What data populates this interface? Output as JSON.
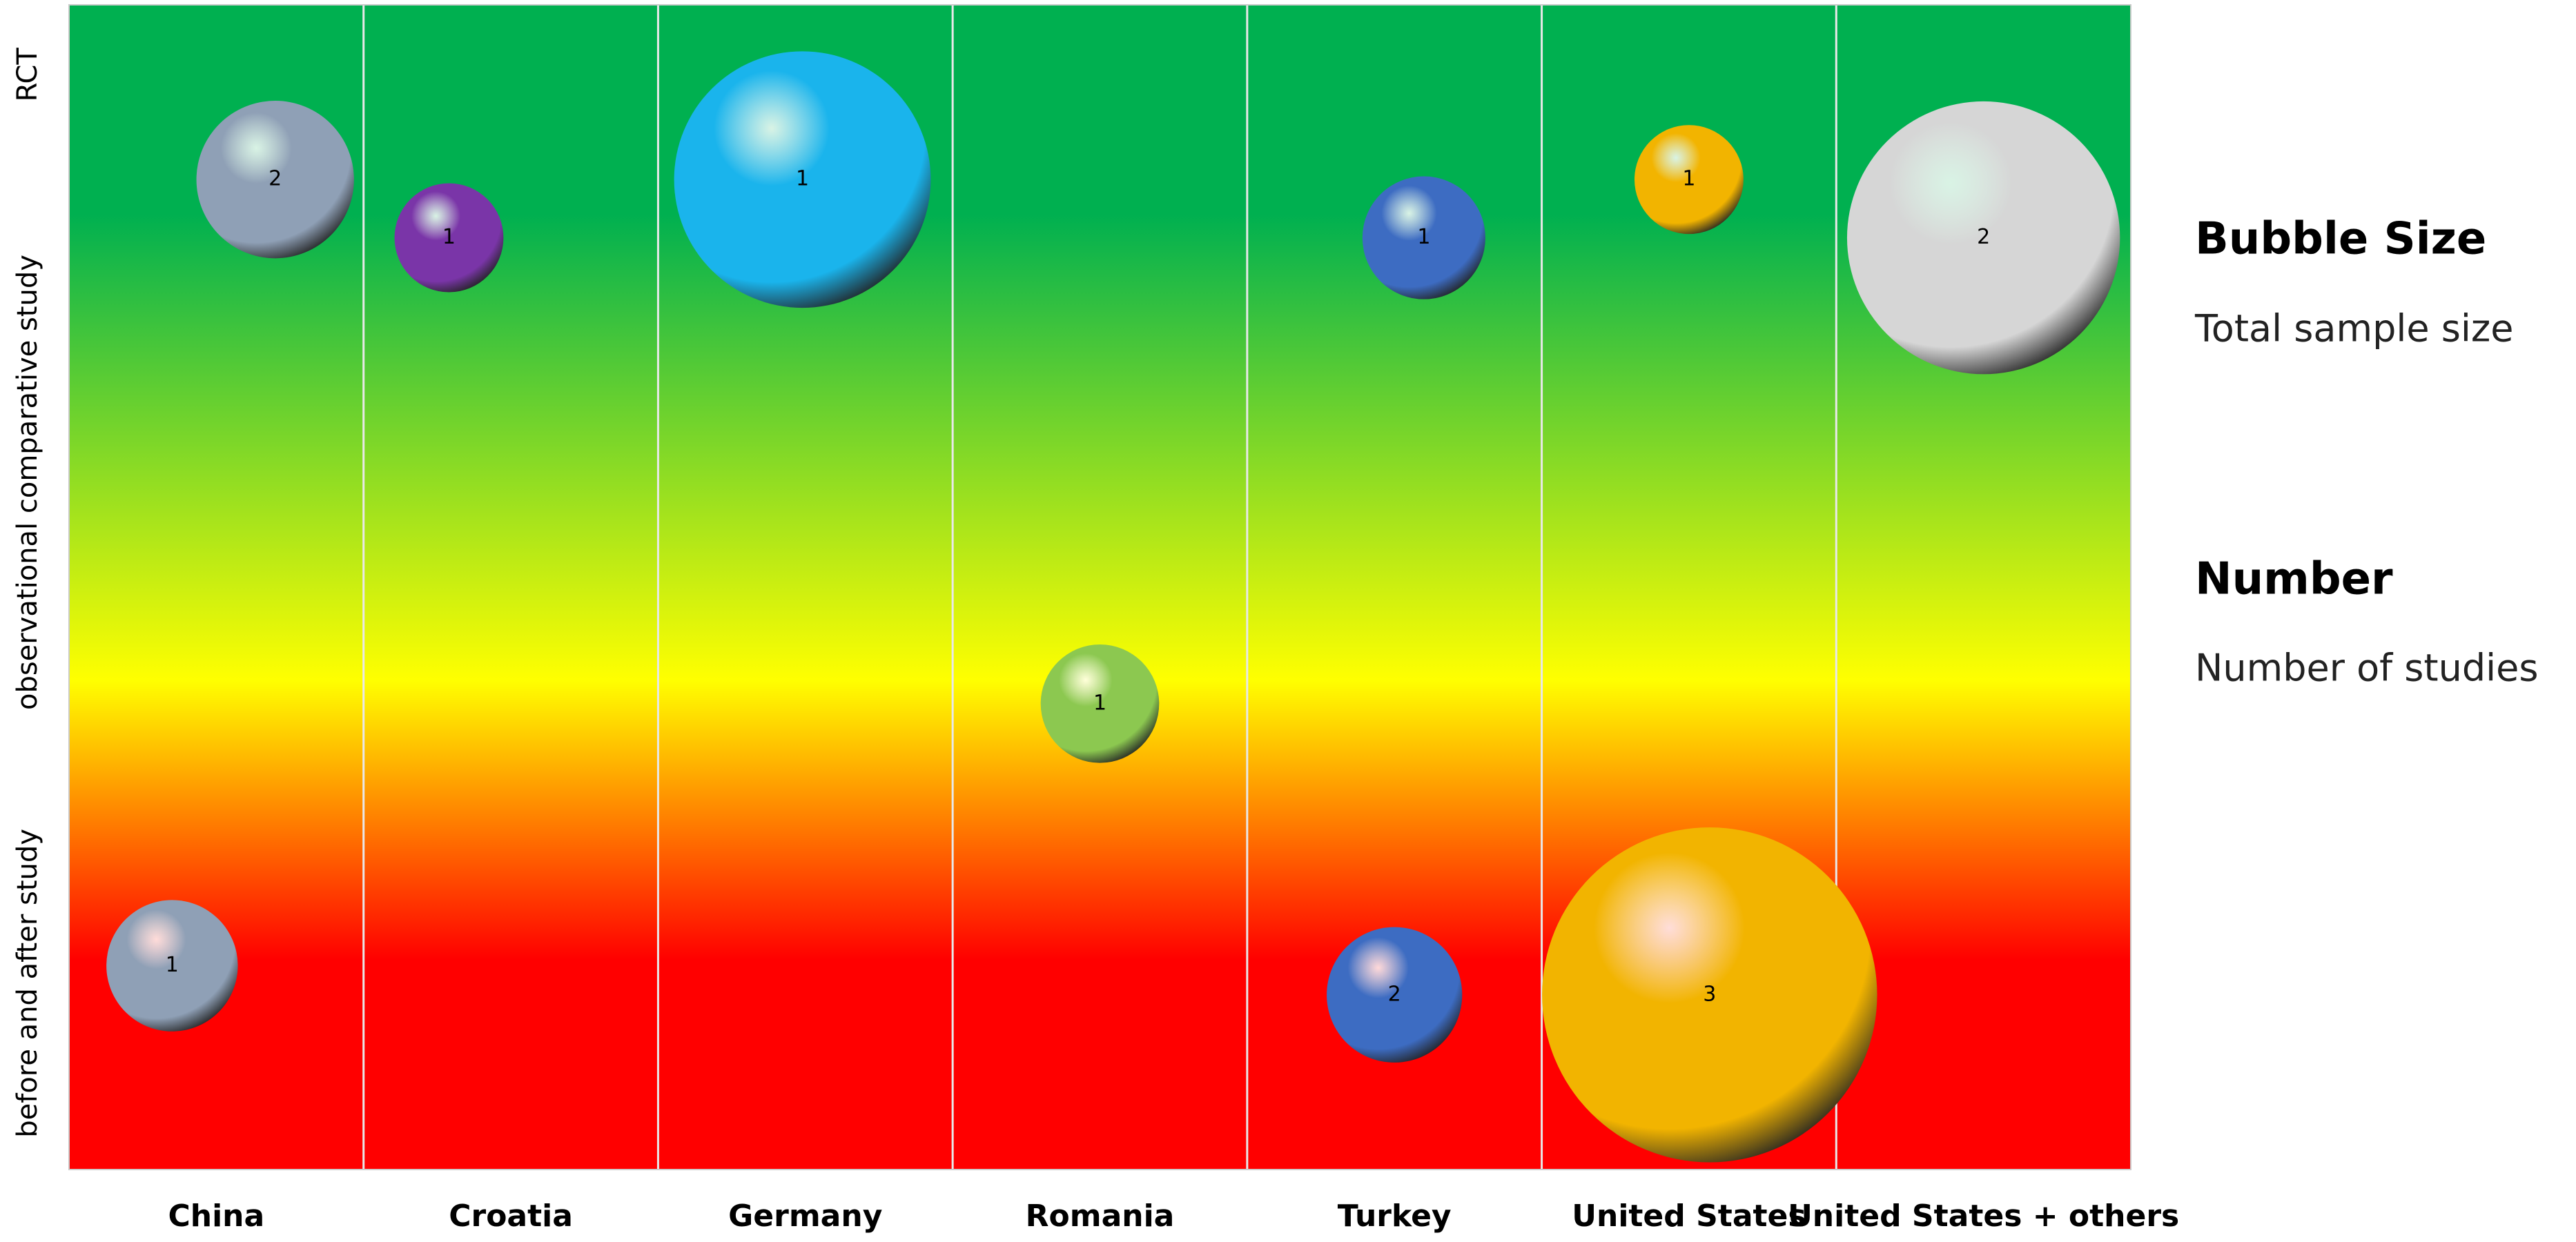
{
  "chart_data": {
    "type": "bubble",
    "xlim": [
      0,
      7
    ],
    "xticks": [
      {
        "value": 0.5,
        "label": "China"
      },
      {
        "value": 1.5,
        "label": "Croatia"
      },
      {
        "value": 2.5,
        "label": "Germany"
      },
      {
        "value": 3.5,
        "label": "Romania"
      },
      {
        "value": 4.5,
        "label": "Turkey"
      },
      {
        "value": 5.5,
        "label": "United States"
      },
      {
        "value": 6.5,
        "label": "United States + others"
      }
    ],
    "ylim": [
      0,
      100
    ],
    "yticks": [
      {
        "value": 94,
        "label": "RCT"
      },
      {
        "value": 59,
        "label": "observational comparative study"
      },
      {
        "value": 16,
        "label": "before and after study"
      }
    ],
    "legend": {
      "size_title": "Bubble Size",
      "size_text": "Total sample size",
      "number_title": "Number",
      "number_text": "Number of studies"
    },
    "series": [
      {
        "color": "#8fa0b6",
        "x": [
          0.7,
          0.35
        ],
        "y": [
          85,
          17.5
        ],
        "sizes": [
          23,
          16
        ],
        "studies": [
          2,
          1
        ]
      },
      {
        "color": "#7a35a8",
        "x": [
          1.29
        ],
        "y": [
          80
        ],
        "sizes": [
          11
        ],
        "studies": [
          1
        ]
      },
      {
        "color": "#1ab4ec",
        "x": [
          2.49
        ],
        "y": [
          85
        ],
        "sizes": [
          61
        ],
        "studies": [
          1
        ]
      },
      {
        "color": "#8cc850",
        "x": [
          3.5
        ],
        "y": [
          40
        ],
        "sizes": [
          13
        ],
        "studies": [
          1
        ]
      },
      {
        "color": "#3d6cc2",
        "x": [
          4.6,
          4.5
        ],
        "y": [
          80,
          15
        ],
        "sizes": [
          14,
          17
        ],
        "studies": [
          1,
          2
        ]
      },
      {
        "color": "#f2b400",
        "x": [
          5.5,
          5.57
        ],
        "y": [
          85,
          15
        ],
        "sizes": [
          11,
          104
        ],
        "studies": [
          1,
          3
        ]
      },
      {
        "color": "#d6d6d6",
        "x": [
          6.5
        ],
        "y": [
          80
        ],
        "sizes": [
          69
        ],
        "studies": [
          2
        ]
      }
    ]
  }
}
